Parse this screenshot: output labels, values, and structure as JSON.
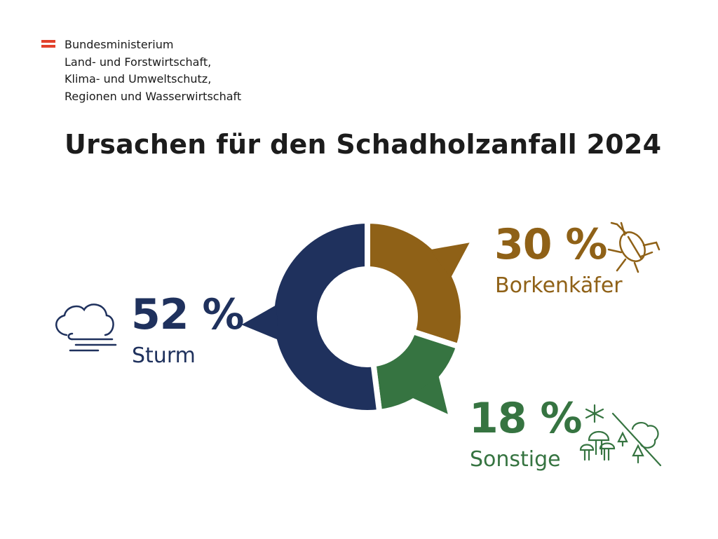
{
  "ministry": {
    "lines": [
      "Bundesministerium",
      "Land- und Forstwirtschaft,",
      "Klima- und Umweltschutz,",
      "Regionen und Wasserwirtschaft"
    ]
  },
  "chart_data": {
    "type": "pie",
    "title": "Ursachen für den Schadholzanfall 2024",
    "unit": "%",
    "slices": [
      {
        "label": "Borkenkäfer",
        "value": 30,
        "value_label": "30 %",
        "color": "#8f6117",
        "icon": "bark-beetle-icon"
      },
      {
        "label": "Sonstige",
        "value": 18,
        "value_label": "18 %",
        "color": "#367441",
        "icon": "snow-mushroom-tree-icon"
      },
      {
        "label": "Sturm",
        "value": 52,
        "value_label": "52 %",
        "color": "#1f315d",
        "icon": "storm-wind-icon"
      }
    ]
  }
}
